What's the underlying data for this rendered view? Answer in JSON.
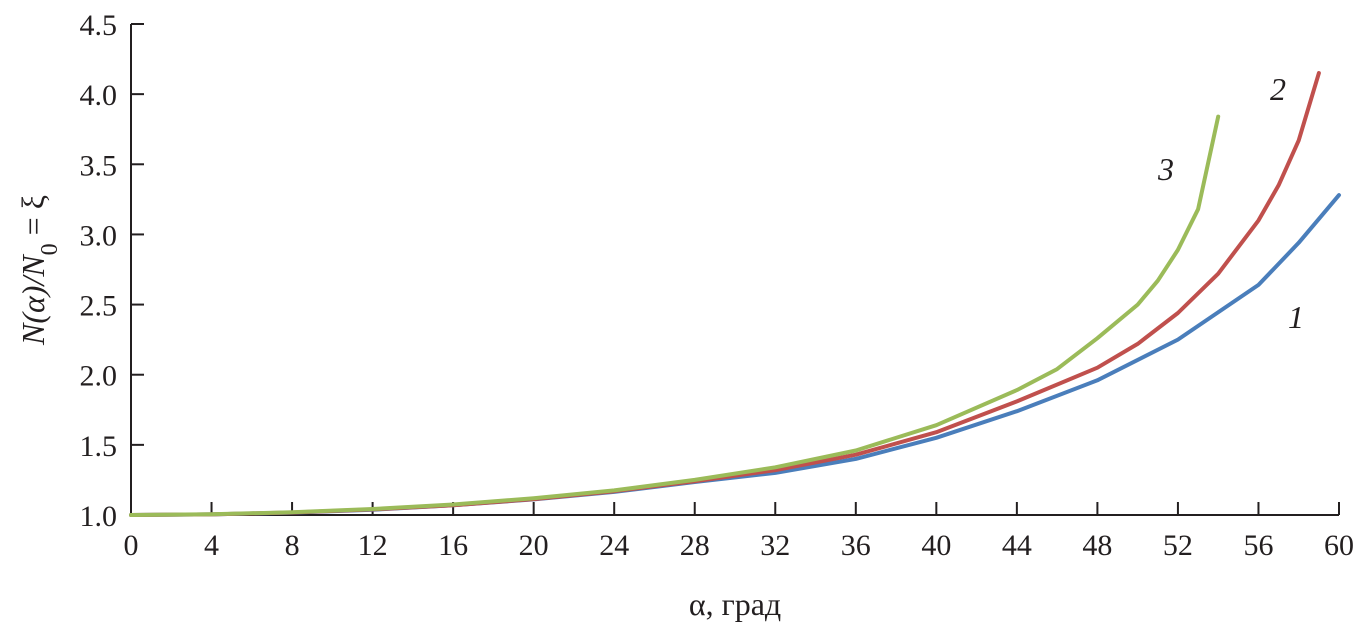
{
  "chart_data": {
    "type": "line",
    "title": "",
    "xlabel": "α, град",
    "ylabel": {
      "main": "N(α)/N",
      "subscript": "0",
      "suffix": " = ξ"
    },
    "xlim": [
      0,
      60
    ],
    "ylim": [
      1.0,
      4.5
    ],
    "xticks": [
      "0",
      "4",
      "8",
      "12",
      "16",
      "20",
      "24",
      "28",
      "32",
      "36",
      "40",
      "44",
      "48",
      "52",
      "56",
      "60"
    ],
    "yticks": [
      "1.0",
      "1.5",
      "2.0",
      "2.5",
      "3.0",
      "3.5",
      "4.0",
      "4.5"
    ],
    "grid": false,
    "legend": "inline curve labels",
    "series": [
      {
        "name": "1",
        "color": "#4a7ebb",
        "x": [
          0,
          4,
          8,
          12,
          16,
          20,
          24,
          28,
          32,
          36,
          40,
          44,
          48,
          52,
          56,
          58,
          60
        ],
        "y": [
          1.0,
          1.004,
          1.017,
          1.038,
          1.069,
          1.111,
          1.165,
          1.235,
          1.3,
          1.4,
          1.55,
          1.74,
          1.96,
          2.25,
          2.64,
          2.94,
          3.28
        ]
      },
      {
        "name": "2",
        "color": "#c0504d",
        "x": [
          0,
          4,
          8,
          12,
          16,
          20,
          24,
          28,
          32,
          36,
          40,
          44,
          48,
          50,
          52,
          54,
          56,
          57,
          58,
          59
        ],
        "y": [
          1.0,
          1.004,
          1.018,
          1.04,
          1.07,
          1.113,
          1.17,
          1.24,
          1.32,
          1.43,
          1.59,
          1.81,
          2.05,
          2.22,
          2.44,
          2.72,
          3.1,
          3.35,
          3.67,
          4.15
        ]
      },
      {
        "name": "3",
        "color": "#9bbb59",
        "x": [
          0,
          4,
          8,
          12,
          16,
          20,
          24,
          28,
          32,
          36,
          40,
          44,
          46,
          48,
          50,
          51,
          52,
          53,
          54
        ],
        "y": [
          1.0,
          1.005,
          1.02,
          1.043,
          1.075,
          1.12,
          1.175,
          1.25,
          1.34,
          1.46,
          1.64,
          1.89,
          2.04,
          2.26,
          2.5,
          2.67,
          2.89,
          3.18,
          3.84
        ]
      }
    ]
  }
}
